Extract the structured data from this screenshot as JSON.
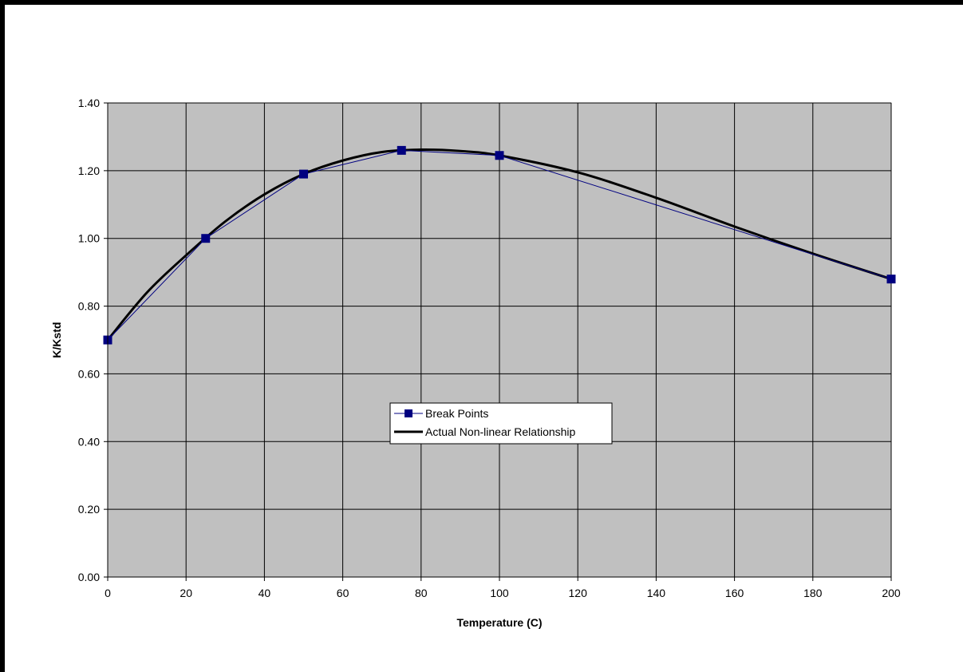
{
  "chart_data": {
    "type": "line",
    "title": "",
    "xlabel": "Temperature (C)",
    "ylabel": "K/Kstd",
    "x_tick_labels": [
      "0",
      "20",
      "40",
      "60",
      "80",
      "100",
      "120",
      "140",
      "160",
      "180",
      "200"
    ],
    "y_tick_labels": [
      "0.00",
      "0.20",
      "0.40",
      "0.60",
      "0.80",
      "1.00",
      "1.20",
      "1.40"
    ],
    "ylim": [
      0,
      1.4
    ],
    "grid": true,
    "plot_background": "#c0c0c0",
    "legend_position": "center",
    "series": [
      {
        "name": "Break Points",
        "color": "#000080",
        "marker": "square",
        "x": [
          0,
          25,
          50,
          75,
          100,
          200
        ],
        "y": [
          0.7,
          1.0,
          1.19,
          1.26,
          1.245,
          0.88
        ]
      },
      {
        "name": "Actual Non-linear Relationship",
        "color": "#000000",
        "marker": "none",
        "x": [
          0,
          10,
          20,
          30,
          40,
          50,
          60,
          70,
          80,
          90,
          100,
          120,
          140,
          160,
          180,
          200
        ],
        "y": [
          0.7,
          0.84,
          0.95,
          1.05,
          1.13,
          1.19,
          1.23,
          1.255,
          1.262,
          1.258,
          1.245,
          1.195,
          1.12,
          1.035,
          0.955,
          0.88
        ]
      }
    ]
  }
}
